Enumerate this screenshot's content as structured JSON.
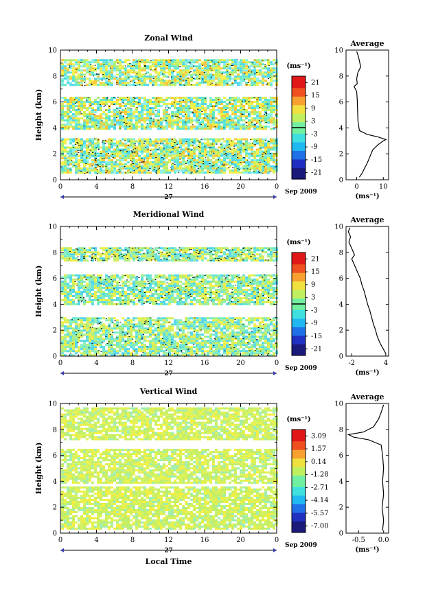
{
  "chart_data": [
    {
      "type": "heatmap",
      "title": "Zonal Wind",
      "ylabel": "Height (km)",
      "x_tick_labels": [
        "0",
        "4",
        "8",
        "12",
        "16",
        "20",
        "0"
      ],
      "y_tick_labels": [
        "0",
        "2",
        "4",
        "6",
        "8",
        "10"
      ],
      "xlim": [
        0,
        24
      ],
      "ylim": [
        0,
        10
      ],
      "day_label": "27",
      "date_label": "Sep 2009",
      "colorbar": {
        "unit_label": "(ms⁻¹)",
        "tick_labels": [
          "21",
          "15",
          "9",
          "3",
          "-3",
          "-9",
          "-15",
          "-21"
        ],
        "range": [
          -24,
          24
        ],
        "zero_line": 0
      },
      "field_colors": [
        "#8bf0e8",
        "#4fd8ec",
        "#62e8c8",
        "#a9ee78",
        "#d8ef52",
        "#f7f04a",
        "#f9c83c"
      ],
      "layers": [
        {
          "y0": 0.5,
          "y1": 1.9,
          "value": -3
        },
        {
          "y0": 1.9,
          "y1": 3.2,
          "value": 5
        },
        {
          "y0": 4.0,
          "y1": 6.4,
          "value": -1
        },
        {
          "y0": 7.3,
          "y1": 9.3,
          "value": -4
        }
      ],
      "average_profile": {
        "title": "Average",
        "unit_label": "(ms⁻¹)",
        "x_tick_labels": [
          "0",
          "10"
        ],
        "xlim": [
          -4,
          12
        ],
        "ylim": [
          0,
          10
        ],
        "points": [
          [
            1,
            0.2
          ],
          [
            2,
            0.5
          ],
          [
            3,
            0.9
          ],
          [
            4,
            1.3
          ],
          [
            5,
            1.8
          ],
          [
            6,
            2.3
          ],
          [
            8,
            2.7
          ],
          [
            10,
            3.0
          ],
          [
            11,
            3.1
          ],
          [
            8,
            3.3
          ],
          [
            4,
            3.5
          ],
          [
            1,
            3.8
          ],
          [
            0.5,
            4.5
          ],
          [
            0.3,
            5.5
          ],
          [
            0.2,
            6.2
          ],
          [
            0,
            6.8
          ],
          [
            -0.5,
            7.0
          ],
          [
            -1,
            7.2
          ],
          [
            0.2,
            7.4
          ],
          [
            0,
            7.8
          ],
          [
            0.5,
            8.3
          ],
          [
            1.5,
            8.7
          ],
          [
            1,
            9.2
          ],
          [
            0.5,
            9.6
          ],
          [
            0,
            9.9
          ]
        ]
      }
    },
    {
      "type": "heatmap",
      "title": "Meridional Wind",
      "ylabel": "Height (km)",
      "x_tick_labels": [
        "0",
        "4",
        "8",
        "12",
        "16",
        "20",
        "0"
      ],
      "y_tick_labels": [
        "0",
        "2",
        "4",
        "6",
        "8",
        "10"
      ],
      "xlim": [
        0,
        24
      ],
      "ylim": [
        0,
        10
      ],
      "day_label": "27",
      "date_label": "Sep 2009",
      "colorbar": {
        "unit_label": "(ms⁻¹)",
        "tick_labels": [
          "21",
          "15",
          "9",
          "3",
          "-3",
          "-9",
          "-15",
          "-21"
        ],
        "range": [
          -24,
          24
        ],
        "zero_line": 0
      },
      "field_colors": [
        "#6ae6d2",
        "#8aeeb8",
        "#a8ee7c",
        "#d2ee58",
        "#f2ee48",
        "#52d6ea"
      ],
      "layers": [
        {
          "y0": 0.0,
          "y1": 3.0,
          "value": 2
        },
        {
          "y0": 4.0,
          "y1": 6.3,
          "value": -1
        },
        {
          "y0": 7.4,
          "y1": 8.4,
          "value": -4
        }
      ],
      "average_profile": {
        "title": "Average",
        "unit_label": "(ms⁻¹)",
        "x_tick_labels": [
          "-2",
          "4"
        ],
        "xlim": [
          -3,
          4.5
        ],
        "ylim": [
          0,
          10
        ],
        "points": [
          [
            4,
            0.2
          ],
          [
            3.5,
            0.6
          ],
          [
            3,
            1.0
          ],
          [
            2.5,
            1.5
          ],
          [
            2.2,
            2.0
          ],
          [
            1.8,
            2.5
          ],
          [
            1.5,
            3.0
          ],
          [
            1.2,
            3.5
          ],
          [
            0.8,
            4.0
          ],
          [
            0.5,
            4.5
          ],
          [
            0.2,
            5.0
          ],
          [
            -0.2,
            5.5
          ],
          [
            -0.5,
            6.0
          ],
          [
            -1.0,
            6.5
          ],
          [
            -1.5,
            7.0
          ],
          [
            -2.0,
            7.5
          ],
          [
            -1.5,
            7.8
          ],
          [
            -2.0,
            8.3
          ],
          [
            -2.5,
            8.8
          ],
          [
            -2.2,
            9.2
          ],
          [
            -2.6,
            9.6
          ],
          [
            -2.3,
            9.9
          ]
        ]
      }
    },
    {
      "type": "heatmap",
      "title": "Vertical Wind",
      "ylabel": "Height (km)",
      "xlabel": "Local Time",
      "x_tick_labels": [
        "0",
        "4",
        "8",
        "12",
        "16",
        "20",
        "0"
      ],
      "y_tick_labels": [
        "0",
        "2",
        "4",
        "6",
        "8",
        "10"
      ],
      "xlim": [
        0,
        24
      ],
      "ylim": [
        0,
        10
      ],
      "day_label": "27",
      "date_label": "Sep 2009",
      "colorbar": {
        "unit_label": "(ms⁻¹)",
        "tick_labels": [
          "3.09",
          "1.57",
          "0.14",
          "-1.28",
          "-2.71",
          "-4.14",
          "-5.57",
          "-7.00"
        ],
        "range": [
          -7.7,
          3.8
        ],
        "zero_line": null
      },
      "field_colors": [
        "#d4f25a",
        "#c6ee60",
        "#bcee70",
        "#e2f24e",
        "#f4ee40",
        "#9eeeb0"
      ],
      "layers": [
        {
          "y0": 0.4,
          "y1": 3.6,
          "value": 0.2
        },
        {
          "y0": 3.9,
          "y1": 6.5,
          "value": 0.1
        },
        {
          "y0": 7.2,
          "y1": 9.7,
          "value": 0.0
        }
      ],
      "average_profile": {
        "title": "Average",
        "unit_label": "(ms⁻¹)",
        "x_tick_labels": [
          "-0.5",
          "0.0"
        ],
        "xlim": [
          -0.75,
          0.1
        ],
        "ylim": [
          0,
          10
        ],
        "points": [
          [
            -0.02,
            0.2
          ],
          [
            0.0,
            1.0
          ],
          [
            -0.03,
            2.0
          ],
          [
            0.0,
            3.0
          ],
          [
            -0.02,
            4.0
          ],
          [
            0.0,
            5.0
          ],
          [
            -0.02,
            6.0
          ],
          [
            -0.05,
            6.8
          ],
          [
            -0.3,
            7.2
          ],
          [
            -0.6,
            7.4
          ],
          [
            -0.7,
            7.6
          ],
          [
            -0.4,
            7.8
          ],
          [
            -0.2,
            8.2
          ],
          [
            -0.1,
            8.8
          ],
          [
            -0.05,
            9.3
          ],
          [
            0.0,
            9.9
          ]
        ]
      }
    }
  ]
}
